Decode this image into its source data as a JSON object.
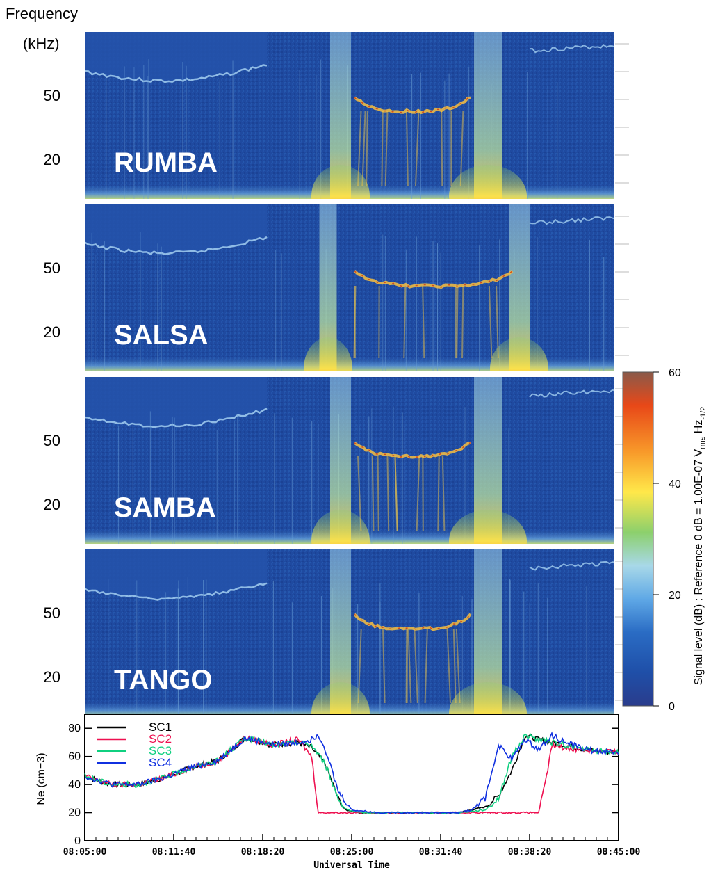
{
  "figure": {
    "freq_axis_title_line1": "Frequency",
    "freq_axis_title_line2": "(kHz)",
    "colorbar_title": "Signal level (dB) ;  Reference 0 dB = 1.00E-07 V",
    "colorbar_title_sub": "rms",
    "colorbar_title_tail": " Hz",
    "colorbar_title_sup": "-1/2"
  },
  "chart_data": [
    {
      "type": "heatmap",
      "description_free": true,
      "panels": [
        {
          "name": "RUMBA"
        },
        {
          "name": "SALSA"
        },
        {
          "name": "SAMBA"
        },
        {
          "name": "TANGO"
        }
      ],
      "y_tick_labels": [
        "50",
        "20"
      ],
      "ylabel": "Frequency (kHz)",
      "colorbar": {
        "ticks": [
          0,
          20,
          40,
          60
        ],
        "range": [
          0,
          60
        ],
        "colors": [
          "#2a3c8c",
          "#1f4fa8",
          "#2a6cc4",
          "#5fa8e6",
          "#a8d8e8",
          "#8cd06c",
          "#ffe84a",
          "#f89a2a",
          "#e84818",
          "#8a5a4a"
        ]
      }
    },
    {
      "type": "line",
      "ylabel": "Ne (cm−3)",
      "xlabel": "Universal Time",
      "x_ticks": [
        "08:05:00",
        "08:11:40",
        "08:18:20",
        "08:25:00",
        "08:31:40",
        "08:38:20",
        "08:45:00"
      ],
      "ylim": [
        0,
        90
      ],
      "y_ticks": [
        "0",
        "20",
        "40",
        "60",
        "80"
      ],
      "series": [
        {
          "name": "SC1",
          "color": "#000000",
          "x": [
            0,
            2,
            4,
            6,
            8,
            10,
            12,
            13.5,
            14,
            16,
            17,
            18,
            19,
            19.5,
            20,
            20.5,
            21,
            22,
            24,
            26,
            28,
            30,
            31,
            32,
            33,
            34,
            35,
            36,
            38,
            40
          ],
          "y": [
            46,
            40,
            40,
            45,
            52,
            57,
            73,
            70,
            68,
            70,
            66,
            55,
            30,
            22,
            21,
            20,
            20,
            20,
            20,
            20,
            20,
            24,
            32,
            50,
            75,
            72,
            70,
            68,
            64,
            63
          ]
        },
        {
          "name": "SC2",
          "color": "#ee1050",
          "x": [
            0,
            2,
            4,
            6,
            8,
            10,
            12,
            13.5,
            14,
            16,
            17,
            17.5,
            18,
            20,
            22,
            24,
            26,
            28,
            30,
            31,
            32,
            33,
            34,
            34.5,
            35,
            36,
            38,
            40
          ],
          "y": [
            46,
            40,
            40,
            45,
            52,
            57,
            73,
            70,
            68,
            72,
            60,
            20,
            20,
            20,
            20,
            20,
            20,
            20,
            20,
            20,
            20,
            20,
            20,
            40,
            68,
            66,
            64,
            63
          ]
        },
        {
          "name": "SC3",
          "color": "#10d080",
          "x": [
            0,
            2,
            4,
            6,
            8,
            10,
            12,
            13.5,
            14,
            16,
            17,
            18,
            19,
            19.5,
            20,
            20.5,
            21,
            22,
            24,
            26,
            28,
            30,
            31,
            32,
            33,
            34,
            35,
            36,
            38,
            40
          ],
          "y": [
            46,
            40,
            40,
            45,
            52,
            57,
            73,
            70,
            68,
            70,
            68,
            55,
            30,
            23,
            21,
            20,
            20,
            20,
            20,
            20,
            20,
            22,
            30,
            60,
            75,
            72,
            70,
            68,
            64,
            63
          ]
        },
        {
          "name": "SC4",
          "color": "#1030e0",
          "x": [
            0,
            2,
            4,
            6,
            8,
            10,
            12,
            13.5,
            14,
            16,
            17,
            17.5,
            18,
            19,
            20,
            21,
            22,
            24,
            26,
            28,
            29,
            30,
            31,
            32,
            33,
            34,
            35,
            36,
            38,
            40
          ],
          "y": [
            46,
            40,
            40,
            45,
            52,
            57,
            73,
            70,
            68,
            70,
            72,
            76,
            66,
            35,
            22,
            21,
            20,
            20,
            20,
            20,
            22,
            30,
            68,
            58,
            72,
            65,
            75,
            70,
            64,
            63
          ]
        }
      ]
    }
  ]
}
